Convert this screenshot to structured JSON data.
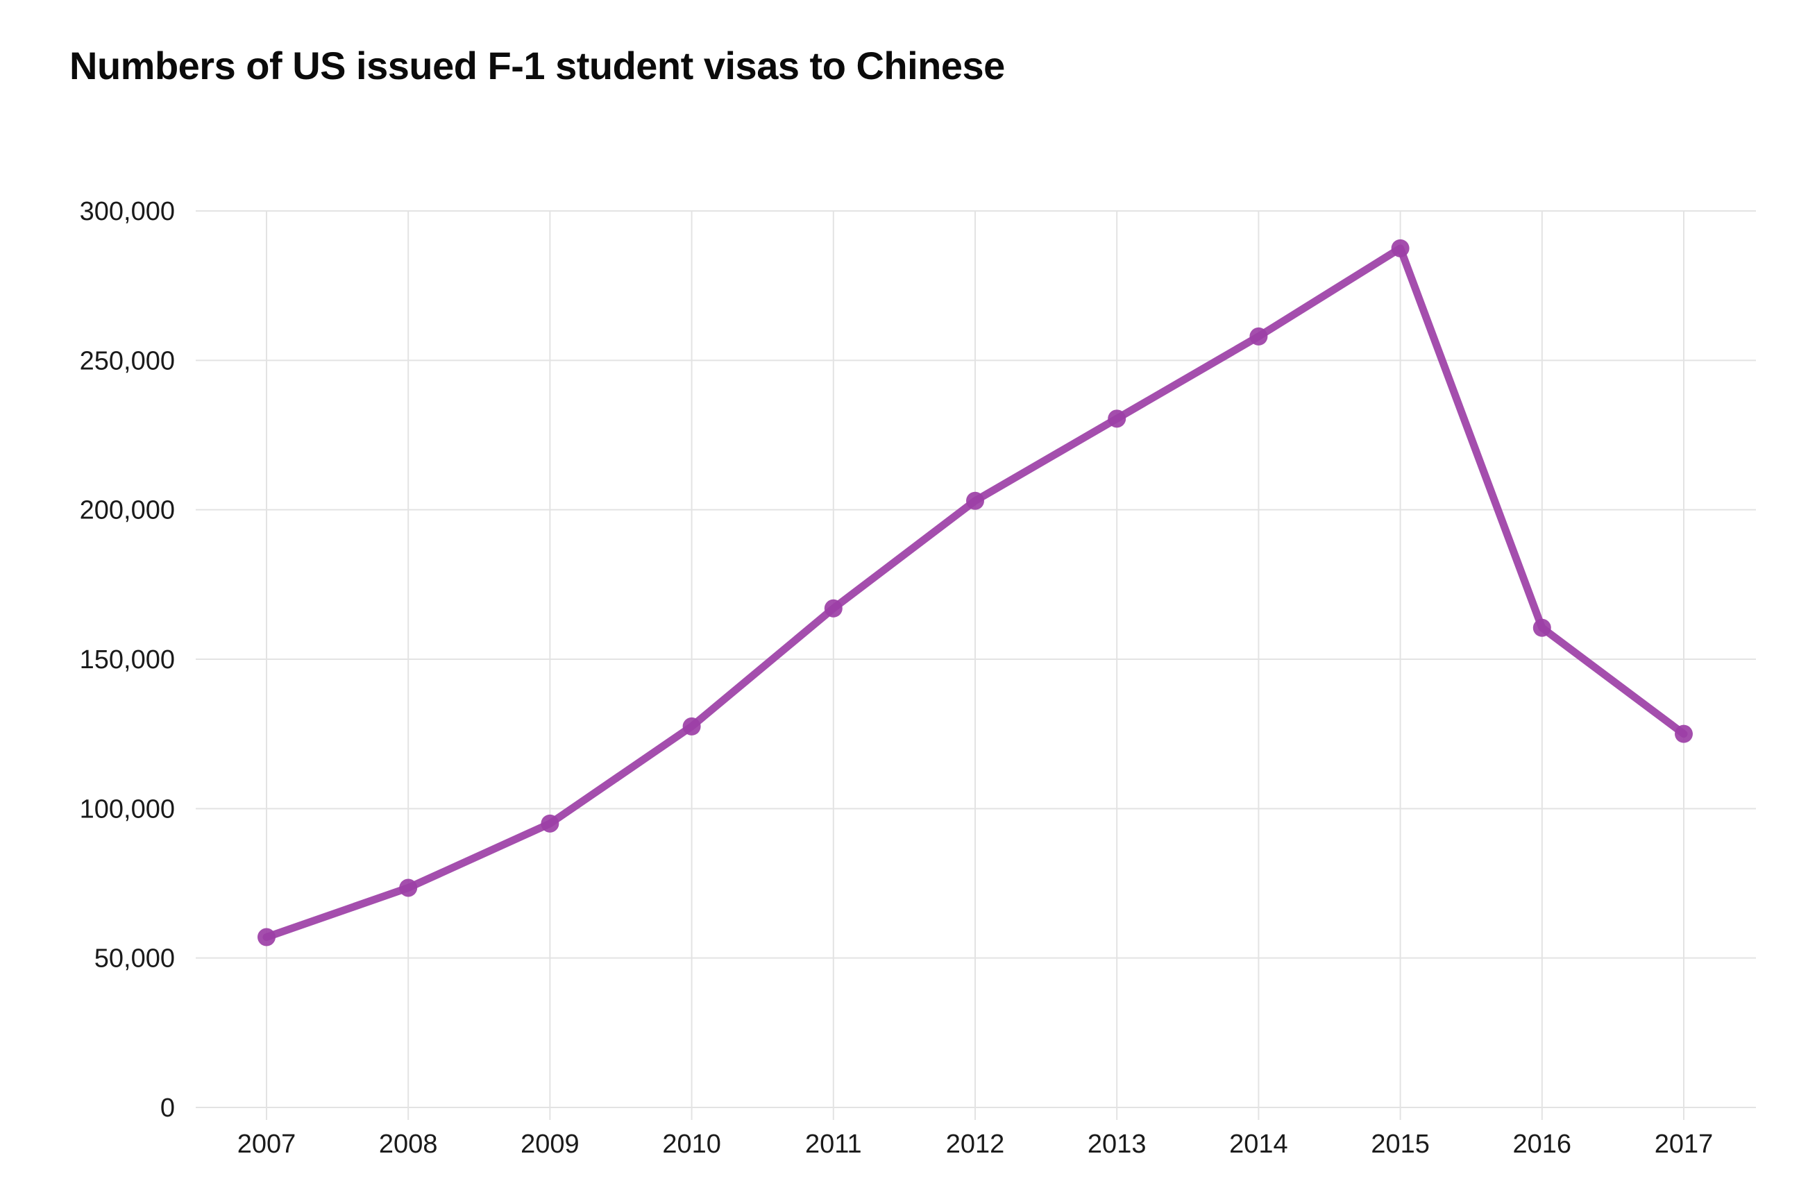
{
  "chart_data": {
    "type": "line",
    "title": "Numbers of US issued F-1 student visas to Chinese",
    "xlabel": "",
    "ylabel": "",
    "x": [
      "2007",
      "2008",
      "2009",
      "2010",
      "2011",
      "2012",
      "2013",
      "2014",
      "2015",
      "2016",
      "2017"
    ],
    "series": [
      {
        "values": [
          57000,
          73500,
          95000,
          127500,
          167000,
          203000,
          230500,
          258000,
          287500,
          160500,
          125000
        ],
        "color": "#9c3fa6"
      }
    ],
    "ylim": [
      0,
      300000
    ],
    "yticks": [
      0,
      50000,
      100000,
      150000,
      200000,
      250000,
      300000
    ],
    "ytick_labels": [
      "0",
      "50,000",
      "100,000",
      "150,000",
      "200,000",
      "250,000",
      "300,000"
    ],
    "xtick_labels": [
      "2007",
      "2008",
      "2009",
      "2010",
      "2011",
      "2012",
      "2013",
      "2014",
      "2015",
      "2016",
      "2017"
    ],
    "grid": true,
    "legend": "none",
    "colors": {
      "line": "#9c3fa6",
      "marker": "#9c3fa6",
      "grid": "#e3e3e3",
      "text": "#1a1a1a"
    }
  }
}
